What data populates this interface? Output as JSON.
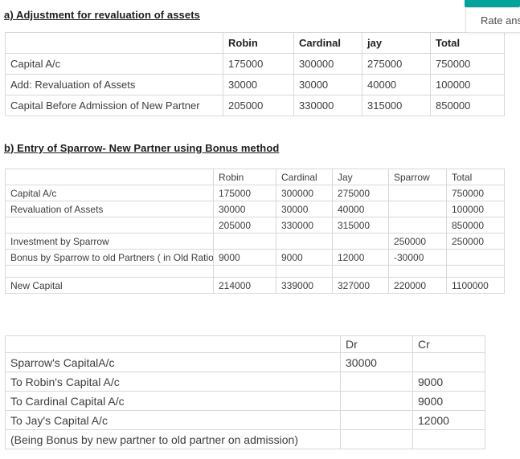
{
  "colors": {
    "accent_teal": "#00a49a",
    "table_border": "#d8d8d8",
    "text": "#3d3d3d"
  },
  "rate_widget": {
    "label": "Rate ans"
  },
  "section_a": {
    "title": "a) Adjustment for revaluation of assets",
    "table": {
      "headers": [
        "",
        "Robin",
        "Cardinal",
        "jay",
        "Total"
      ],
      "rows": [
        [
          "Capital A/c",
          "175000",
          "300000",
          "275000",
          "750000"
        ],
        [
          "Add: Revaluation of Assets",
          "30000",
          "30000",
          "40000",
          "100000"
        ],
        [
          "Capital Before Admission of New Partner",
          "205000",
          "330000",
          "315000",
          "850000"
        ]
      ]
    }
  },
  "section_b": {
    "title": "b) Entry of Sparrow- New Partner using Bonus method",
    "table": {
      "headers": [
        "",
        "Robin",
        "Cardinal",
        "Jay",
        "Sparrow",
        "Total"
      ],
      "rows": [
        [
          "Capital A/c",
          "175000",
          "300000",
          "275000",
          "",
          "750000"
        ],
        [
          "Revaluation of Assets",
          "30000",
          "30000",
          "40000",
          "",
          "100000"
        ],
        [
          "",
          "205000",
          "330000",
          "315000",
          "",
          "850000"
        ],
        [
          "Investment by Sparrow",
          "",
          "",
          "",
          "250000",
          "250000"
        ],
        [
          "Bonus by Sparrow to old Partners ( in Old Ratio)",
          "9000",
          "9000",
          "12000",
          "-30000",
          ""
        ],
        [
          "",
          "",
          "",
          "",
          "",
          ""
        ],
        [
          "New Capital",
          "214000",
          "339000",
          "327000",
          "220000",
          "1100000"
        ]
      ]
    }
  },
  "journal": {
    "table": {
      "headers": [
        "",
        "Dr",
        "Cr"
      ],
      "rows": [
        [
          "Sparrow's CapitalA/c",
          "30000",
          ""
        ],
        [
          "To Robin's Capital A/c",
          "",
          "9000"
        ],
        [
          "To Cardinal Capital A/c",
          "",
          "9000"
        ],
        [
          "To Jay's Capital A/c",
          "",
          "12000"
        ],
        [
          "(Being Bonus by new partner to old partner on admission)",
          "",
          ""
        ]
      ]
    }
  }
}
